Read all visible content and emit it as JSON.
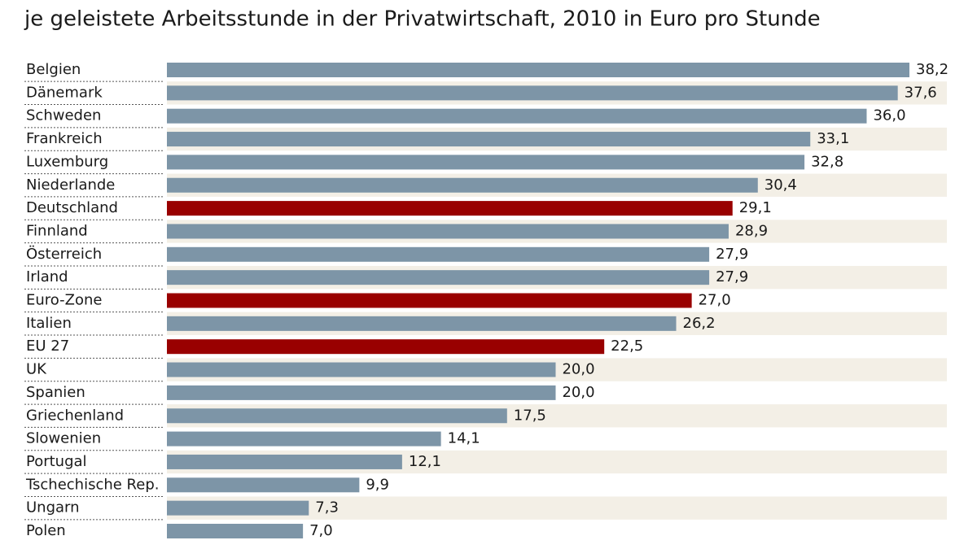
{
  "chart_data": {
    "type": "bar",
    "orientation": "horizontal",
    "title": "je geleistete Arbeitsstunde in der Privatwirtschaft, 2010 in Euro pro Stunde",
    "categories": [
      "Belgien",
      "Dänemark",
      "Schweden",
      "Frankreich",
      "Luxemburg",
      "Niederlande",
      "Deutschland",
      "Finnland",
      "Österreich",
      "Irland",
      "Euro-Zone",
      "Italien",
      "EU 27",
      "UK",
      "Spanien",
      "Griechenland",
      "Slowenien",
      "Portugal",
      "Tschechische Rep.",
      "Ungarn",
      "Polen"
    ],
    "values": [
      38.2,
      37.6,
      36.0,
      33.1,
      32.8,
      30.4,
      29.1,
      28.9,
      27.9,
      27.9,
      27.0,
      26.2,
      22.5,
      20.0,
      20.0,
      17.5,
      14.1,
      12.1,
      9.9,
      7.3,
      7.0
    ],
    "value_labels": [
      "38,2",
      "37,6",
      "36,0",
      "33,1",
      "32,8",
      "30,4",
      "29,1",
      "28,9",
      "27,9",
      "27,9",
      "27,0",
      "26,2",
      "22,5",
      "20,0",
      "20,0",
      "17,5",
      "14,1",
      "12,1",
      "9,9",
      "7,3",
      "7,0"
    ],
    "colors": [
      "#7d95a7",
      "#7d95a7",
      "#7d95a7",
      "#7d95a7",
      "#7d95a7",
      "#7d95a7",
      "#990000",
      "#7d95a7",
      "#7d95a7",
      "#7d95a7",
      "#990000",
      "#7d95a7",
      "#990000",
      "#7d95a7",
      "#7d95a7",
      "#7d95a7",
      "#7d95a7",
      "#7d95a7",
      "#7d95a7",
      "#7d95a7",
      "#7d95a7"
    ]
  }
}
